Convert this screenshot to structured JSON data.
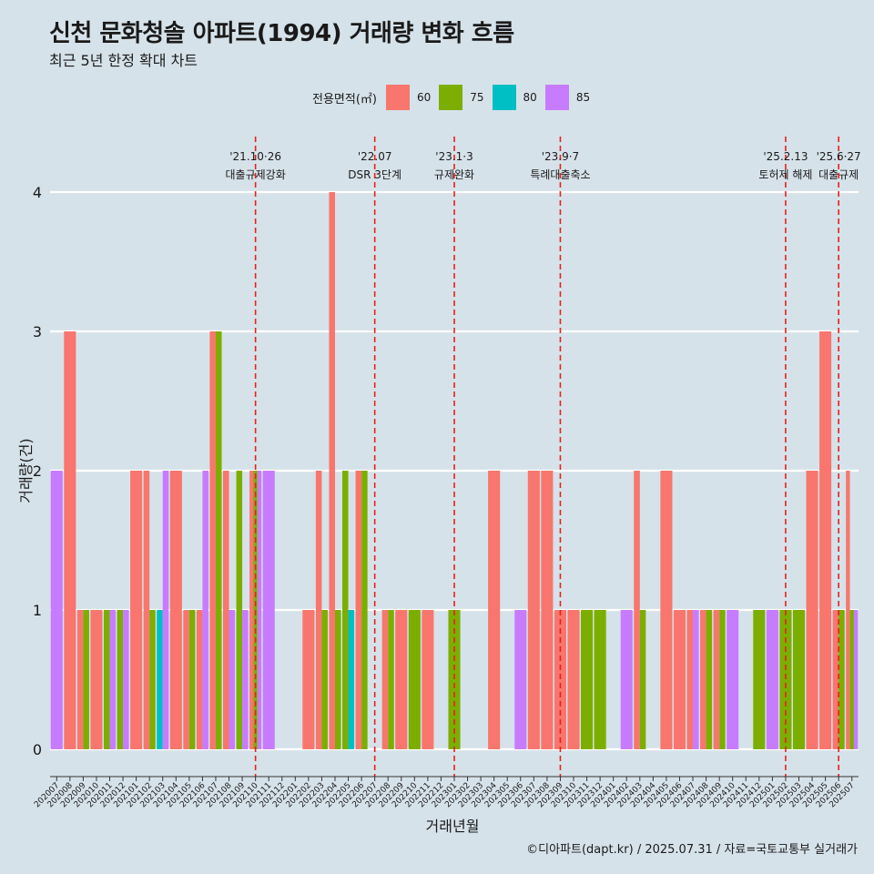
{
  "title": "신천 문화청솔 아파트(1994) 거래량 변화 흐름",
  "subtitle": "최근 5년 한정 확대 차트",
  "caption": "©디아파트(dapt.kr) / 2025.07.31 / 자료=국토교통부 실거래가",
  "legend": {
    "title": "전용면적(㎡)",
    "items": [
      {
        "label": "60",
        "color": "#F8766D"
      },
      {
        "label": "75",
        "color": "#7CAE00"
      },
      {
        "label": "80",
        "color": "#00BFC4"
      },
      {
        "label": "85",
        "color": "#C77CFF"
      }
    ]
  },
  "chart_data": {
    "type": "bar",
    "xlabel": "거래년월",
    "ylabel": "거래량(건)",
    "ylim": [
      0,
      4
    ],
    "yticks": [
      0,
      1,
      2,
      3,
      4
    ],
    "grid": "horizontal",
    "legend_position": "top",
    "categories": [
      "202007",
      "202008",
      "202009",
      "202010",
      "202011",
      "202012",
      "202101",
      "202102",
      "202103",
      "202104",
      "202105",
      "202106",
      "202107",
      "202108",
      "202109",
      "202110",
      "202111",
      "202112",
      "202201",
      "202202",
      "202203",
      "202204",
      "202205",
      "202206",
      "202207",
      "202208",
      "202209",
      "202210",
      "202211",
      "202212",
      "202301",
      "202302",
      "202303",
      "202304",
      "202305",
      "202306",
      "202307",
      "202308",
      "202309",
      "202310",
      "202311",
      "202312",
      "202401",
      "202402",
      "202403",
      "202404",
      "202405",
      "202406",
      "202407",
      "202408",
      "202409",
      "202410",
      "202411",
      "202412",
      "202501",
      "202502",
      "202503",
      "202504",
      "202505",
      "202506",
      "202507"
    ],
    "series": [
      {
        "name": "60",
        "color": "#F8766D",
        "values": [
          0,
          3,
          1,
          1,
          0,
          0,
          2,
          2,
          0,
          2,
          1,
          1,
          3,
          2,
          0,
          2,
          0,
          0,
          0,
          1,
          2,
          4,
          0,
          2,
          0,
          1,
          1,
          0,
          1,
          0,
          0,
          0,
          0,
          2,
          0,
          0,
          2,
          2,
          1,
          1,
          0,
          0,
          0,
          0,
          2,
          0,
          2,
          1,
          1,
          1,
          1,
          0,
          0,
          0,
          0,
          0,
          0,
          2,
          3,
          1,
          2
        ]
      },
      {
        "name": "75",
        "color": "#7CAE00",
        "values": [
          0,
          0,
          1,
          0,
          1,
          1,
          0,
          1,
          0,
          0,
          1,
          0,
          3,
          0,
          2,
          2,
          0,
          0,
          0,
          0,
          1,
          1,
          2,
          2,
          0,
          1,
          0,
          1,
          0,
          0,
          1,
          0,
          0,
          0,
          0,
          0,
          0,
          0,
          0,
          0,
          1,
          1,
          0,
          0,
          1,
          0,
          0,
          0,
          0,
          1,
          1,
          0,
          0,
          1,
          0,
          1,
          1,
          0,
          0,
          1,
          1
        ]
      },
      {
        "name": "80",
        "color": "#00BFC4",
        "values": [
          0,
          0,
          0,
          0,
          0,
          0,
          0,
          0,
          1,
          0,
          0,
          0,
          0,
          0,
          0,
          0,
          0,
          0,
          0,
          0,
          0,
          0,
          1,
          0,
          0,
          0,
          0,
          0,
          0,
          0,
          0,
          0,
          0,
          0,
          0,
          0,
          0,
          0,
          0,
          0,
          0,
          0,
          0,
          0,
          0,
          0,
          0,
          0,
          0,
          0,
          0,
          0,
          0,
          0,
          0,
          0,
          0,
          0,
          0,
          0,
          0
        ]
      },
      {
        "name": "85",
        "color": "#C77CFF",
        "values": [
          2,
          0,
          0,
          0,
          1,
          1,
          0,
          0,
          2,
          0,
          0,
          2,
          0,
          1,
          1,
          2,
          2,
          0,
          0,
          0,
          0,
          0,
          0,
          0,
          0,
          0,
          0,
          0,
          0,
          0,
          0,
          0,
          0,
          0,
          0,
          1,
          0,
          0,
          0,
          0,
          0,
          0,
          0,
          1,
          0,
          0,
          0,
          0,
          1,
          0,
          0,
          1,
          0,
          0,
          1,
          0,
          0,
          0,
          0,
          0,
          1
        ]
      }
    ],
    "annotations": [
      {
        "x": "202110",
        "line1": "'21.10·26",
        "line2": "대출규제강화"
      },
      {
        "x": "202207",
        "line1": "'22.07",
        "line2": "DSR 3단계"
      },
      {
        "x": "202301",
        "line1": "'23.1·3",
        "line2": "규제완화"
      },
      {
        "x": "202309",
        "line1": "'23.9·7",
        "line2": "특례대출축소"
      },
      {
        "x": "202502",
        "line1": "'25.2.13",
        "line2": "토허제 해제"
      },
      {
        "x": "202506",
        "line1": "'25.6·27",
        "line2": "대출규제"
      }
    ]
  }
}
